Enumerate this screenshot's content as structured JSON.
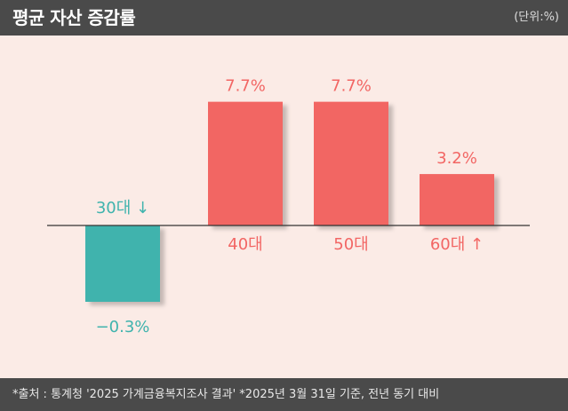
{
  "header": {
    "title": "평균 자산 증감률",
    "unit": "(단위:%)"
  },
  "footer": {
    "source": "*출처 : 통계청 '2025 가계금융복지조사 결과'  *2025년 3월 31일 기준, 전년 동기 대비"
  },
  "colors": {
    "positive": "#f26664",
    "negative": "#3fb3ad",
    "background": "#fbebe6",
    "band": "#4a4a4a"
  },
  "chart_data": {
    "type": "bar",
    "categories": [
      "30대 ↓",
      "40대",
      "50대",
      "60대 ↑"
    ],
    "values": [
      -0.3,
      7.7,
      7.7,
      3.2
    ],
    "value_labels": [
      "−0.3%",
      "7.7%",
      "7.7%",
      "3.2%"
    ],
    "title": "평균 자산 증감률",
    "unit": "(단위:%)",
    "grid": false,
    "legend": "none"
  }
}
